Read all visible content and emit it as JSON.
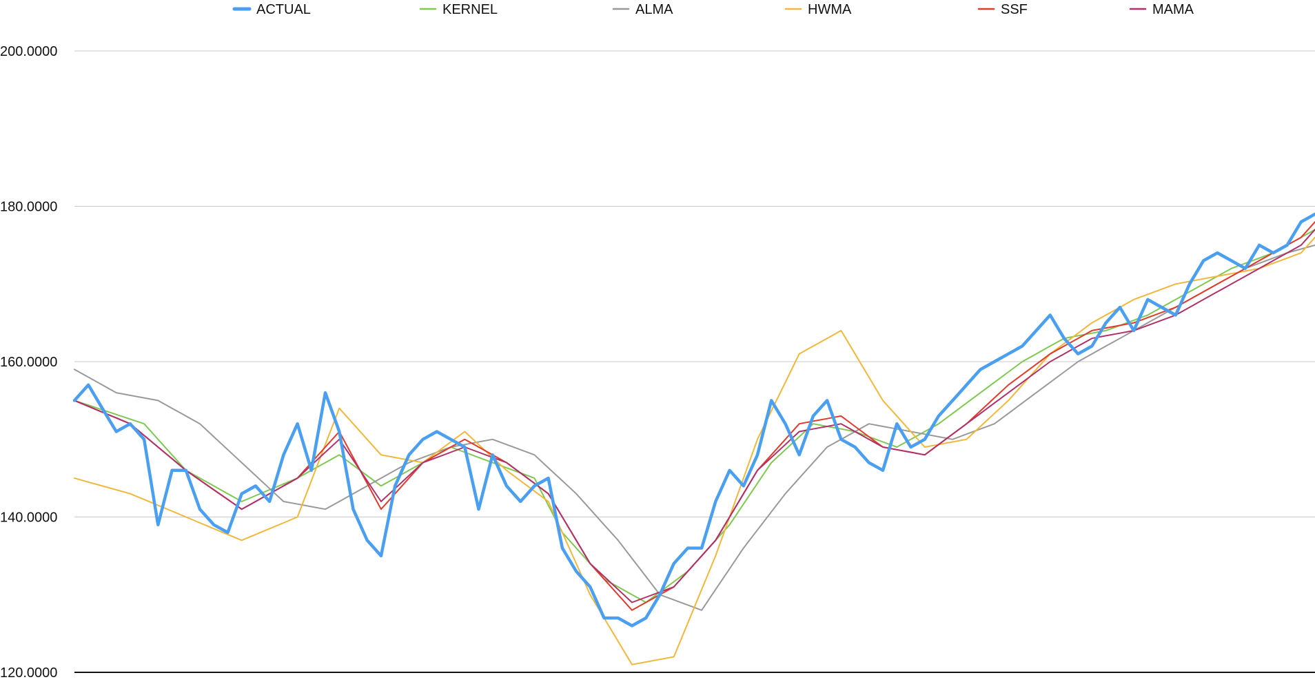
{
  "chart_data": {
    "type": "line",
    "title": "",
    "xlabel": "",
    "ylabel": "",
    "ylim": [
      120,
      200
    ],
    "yticks": [
      {
        "value": 120,
        "label": "120.0000"
      },
      {
        "value": 140,
        "label": "140.0000"
      },
      {
        "value": 160,
        "label": "160.0000"
      },
      {
        "value": 180,
        "label": "180.0000"
      },
      {
        "value": 200,
        "label": "200.0000"
      }
    ],
    "grid": true,
    "legend_position": "top",
    "x_count": 90,
    "series": [
      {
        "name": "ACTUAL",
        "color": "#4a9ff0",
        "width": 4.5,
        "anchors": [
          [
            0,
            155
          ],
          [
            1,
            157
          ],
          [
            2,
            154
          ],
          [
            3,
            151
          ],
          [
            4,
            152
          ],
          [
            5,
            150
          ],
          [
            6,
            139
          ],
          [
            7,
            146
          ],
          [
            8,
            146
          ],
          [
            9,
            141
          ],
          [
            10,
            139
          ],
          [
            11,
            138
          ],
          [
            12,
            143
          ],
          [
            13,
            144
          ],
          [
            14,
            142
          ],
          [
            15,
            148
          ],
          [
            16,
            152
          ],
          [
            17,
            146
          ],
          [
            18,
            156
          ],
          [
            19,
            151
          ],
          [
            20,
            141
          ],
          [
            21,
            137
          ],
          [
            22,
            135
          ],
          [
            23,
            144
          ],
          [
            24,
            148
          ],
          [
            25,
            150
          ],
          [
            26,
            151
          ],
          [
            27,
            150
          ],
          [
            28,
            149
          ],
          [
            29,
            141
          ],
          [
            30,
            148
          ],
          [
            31,
            144
          ],
          [
            32,
            142
          ],
          [
            33,
            144
          ],
          [
            34,
            145
          ],
          [
            35,
            136
          ],
          [
            36,
            133
          ],
          [
            37,
            131
          ],
          [
            38,
            127
          ],
          [
            39,
            127
          ],
          [
            40,
            126
          ],
          [
            41,
            127
          ],
          [
            42,
            130
          ],
          [
            43,
            134
          ],
          [
            44,
            136
          ],
          [
            45,
            136
          ],
          [
            46,
            142
          ],
          [
            47,
            146
          ],
          [
            48,
            144
          ],
          [
            49,
            148
          ],
          [
            50,
            155
          ],
          [
            51,
            152
          ],
          [
            52,
            148
          ],
          [
            53,
            153
          ],
          [
            54,
            155
          ],
          [
            55,
            150
          ],
          [
            56,
            149
          ],
          [
            57,
            147
          ],
          [
            58,
            146
          ],
          [
            59,
            152
          ],
          [
            60,
            149
          ],
          [
            61,
            150
          ],
          [
            62,
            153
          ],
          [
            63,
            155
          ],
          [
            64,
            157
          ],
          [
            65,
            159
          ],
          [
            66,
            160
          ],
          [
            67,
            161
          ],
          [
            68,
            162
          ],
          [
            69,
            164
          ],
          [
            70,
            166
          ],
          [
            71,
            163
          ],
          [
            72,
            161
          ],
          [
            73,
            162
          ],
          [
            74,
            165
          ],
          [
            75,
            167
          ],
          [
            76,
            164
          ],
          [
            77,
            168
          ],
          [
            78,
            167
          ],
          [
            79,
            166
          ],
          [
            80,
            170
          ],
          [
            81,
            173
          ],
          [
            82,
            174
          ],
          [
            83,
            173
          ],
          [
            84,
            172
          ],
          [
            85,
            175
          ],
          [
            86,
            174
          ],
          [
            87,
            175
          ],
          [
            88,
            178
          ],
          [
            89,
            179
          ]
        ]
      },
      {
        "name": "KERNEL",
        "color": "#7ec850",
        "width": 2,
        "anchors": [
          [
            0,
            155
          ],
          [
            5,
            152
          ],
          [
            8,
            146
          ],
          [
            12,
            142
          ],
          [
            16,
            145
          ],
          [
            19,
            148
          ],
          [
            22,
            144
          ],
          [
            24,
            146
          ],
          [
            27,
            149
          ],
          [
            30,
            147
          ],
          [
            33,
            145
          ],
          [
            35,
            138
          ],
          [
            38,
            132
          ],
          [
            41,
            129
          ],
          [
            44,
            133
          ],
          [
            47,
            139
          ],
          [
            50,
            147
          ],
          [
            53,
            152
          ],
          [
            56,
            151
          ],
          [
            59,
            149
          ],
          [
            62,
            152
          ],
          [
            65,
            156
          ],
          [
            68,
            160
          ],
          [
            71,
            163
          ],
          [
            74,
            164
          ],
          [
            77,
            166
          ],
          [
            80,
            169
          ],
          [
            83,
            172
          ],
          [
            86,
            174
          ],
          [
            89,
            177
          ]
        ]
      },
      {
        "name": "ALMA",
        "color": "#999999",
        "width": 2,
        "anchors": [
          [
            0,
            159
          ],
          [
            3,
            156
          ],
          [
            6,
            155
          ],
          [
            9,
            152
          ],
          [
            12,
            147
          ],
          [
            15,
            142
          ],
          [
            18,
            141
          ],
          [
            21,
            144
          ],
          [
            24,
            147
          ],
          [
            27,
            149
          ],
          [
            30,
            150
          ],
          [
            33,
            148
          ],
          [
            36,
            143
          ],
          [
            39,
            137
          ],
          [
            42,
            130
          ],
          [
            45,
            128
          ],
          [
            48,
            136
          ],
          [
            51,
            143
          ],
          [
            54,
            149
          ],
          [
            57,
            152
          ],
          [
            60,
            151
          ],
          [
            63,
            150
          ],
          [
            66,
            152
          ],
          [
            69,
            156
          ],
          [
            72,
            160
          ],
          [
            75,
            163
          ],
          [
            78,
            166
          ],
          [
            81,
            169
          ],
          [
            84,
            172
          ],
          [
            87,
            174
          ],
          [
            89,
            175
          ]
        ]
      },
      {
        "name": "HWMA",
        "color": "#f0b73a",
        "width": 2,
        "anchors": [
          [
            0,
            145
          ],
          [
            4,
            143
          ],
          [
            8,
            140
          ],
          [
            12,
            137
          ],
          [
            16,
            140
          ],
          [
            19,
            154
          ],
          [
            22,
            148
          ],
          [
            25,
            147
          ],
          [
            28,
            151
          ],
          [
            31,
            146
          ],
          [
            34,
            142
          ],
          [
            37,
            130
          ],
          [
            40,
            121
          ],
          [
            43,
            122
          ],
          [
            46,
            135
          ],
          [
            49,
            150
          ],
          [
            52,
            161
          ],
          [
            55,
            164
          ],
          [
            58,
            155
          ],
          [
            61,
            149
          ],
          [
            64,
            150
          ],
          [
            67,
            155
          ],
          [
            70,
            161
          ],
          [
            73,
            165
          ],
          [
            76,
            168
          ],
          [
            79,
            170
          ],
          [
            82,
            171
          ],
          [
            85,
            172
          ],
          [
            88,
            174
          ],
          [
            89,
            176
          ]
        ]
      },
      {
        "name": "SSF",
        "color": "#e03a2a",
        "width": 2,
        "anchors": [
          [
            0,
            155
          ],
          [
            4,
            152
          ],
          [
            8,
            146
          ],
          [
            12,
            141
          ],
          [
            16,
            145
          ],
          [
            19,
            151
          ],
          [
            22,
            141
          ],
          [
            25,
            147
          ],
          [
            28,
            150
          ],
          [
            31,
            147
          ],
          [
            34,
            143
          ],
          [
            37,
            134
          ],
          [
            40,
            128
          ],
          [
            43,
            131
          ],
          [
            46,
            137
          ],
          [
            49,
            146
          ],
          [
            52,
            152
          ],
          [
            55,
            153
          ],
          [
            58,
            149
          ],
          [
            61,
            148
          ],
          [
            64,
            152
          ],
          [
            67,
            157
          ],
          [
            70,
            161
          ],
          [
            73,
            164
          ],
          [
            76,
            165
          ],
          [
            79,
            167
          ],
          [
            82,
            170
          ],
          [
            85,
            173
          ],
          [
            88,
            176
          ],
          [
            89,
            178
          ]
        ]
      },
      {
        "name": "MAMA",
        "color": "#b0306a",
        "width": 2,
        "anchors": [
          [
            0,
            155
          ],
          [
            4,
            152
          ],
          [
            8,
            146
          ],
          [
            12,
            141
          ],
          [
            16,
            145
          ],
          [
            19,
            150
          ],
          [
            22,
            142
          ],
          [
            25,
            147
          ],
          [
            28,
            149
          ],
          [
            31,
            147
          ],
          [
            34,
            143
          ],
          [
            37,
            134
          ],
          [
            40,
            129
          ],
          [
            43,
            131
          ],
          [
            46,
            137
          ],
          [
            49,
            146
          ],
          [
            52,
            151
          ],
          [
            55,
            152
          ],
          [
            58,
            149
          ],
          [
            61,
            148
          ],
          [
            64,
            152
          ],
          [
            67,
            156
          ],
          [
            70,
            160
          ],
          [
            73,
            163
          ],
          [
            76,
            164
          ],
          [
            79,
            166
          ],
          [
            82,
            169
          ],
          [
            85,
            172
          ],
          [
            88,
            175
          ],
          [
            89,
            177
          ]
        ]
      }
    ]
  }
}
